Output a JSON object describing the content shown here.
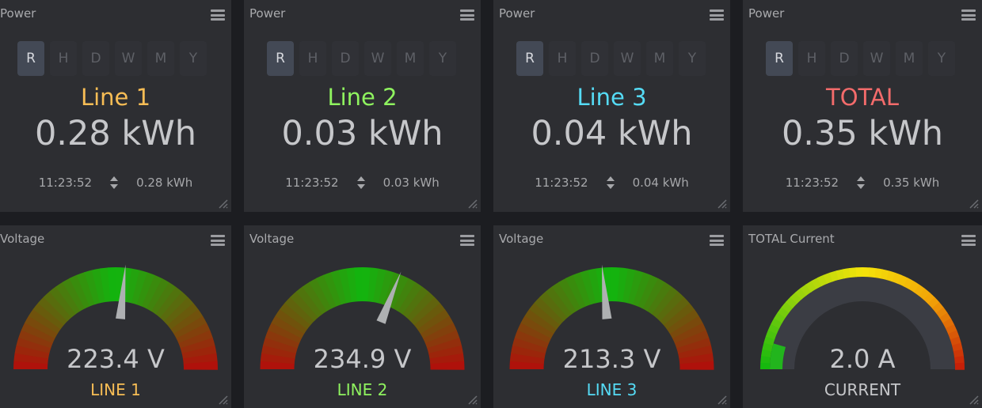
{
  "power_cards": [
    {
      "title": "Power",
      "ranges": [
        "R",
        "H",
        "D",
        "W",
        "M",
        "Y"
      ],
      "active_range": "R",
      "line_name": "Line 1",
      "line_color": "#f7bd55",
      "value": "0.28 kWh",
      "time": "11:23:52",
      "min_max": "0.28 kWh"
    },
    {
      "title": "Power",
      "ranges": [
        "R",
        "H",
        "D",
        "W",
        "M",
        "Y"
      ],
      "active_range": "R",
      "line_name": "Line 2",
      "line_color": "#8ff35f",
      "value": "0.03 kWh",
      "time": "11:23:52",
      "min_max": "0.03 kWh"
    },
    {
      "title": "Power",
      "ranges": [
        "R",
        "H",
        "D",
        "W",
        "M",
        "Y"
      ],
      "active_range": "R",
      "line_name": "Line 3",
      "line_color": "#55dbf5",
      "value": "0.04 kWh",
      "time": "11:23:52",
      "min_max": "0.04 kWh"
    },
    {
      "title": "Power",
      "ranges": [
        "R",
        "H",
        "D",
        "W",
        "M",
        "Y"
      ],
      "active_range": "R",
      "line_name": "TOTAL",
      "line_color": "#f36b6b",
      "value": "0.35 kWh",
      "time": "11:23:52",
      "min_max": "0.35 kWh"
    }
  ],
  "gauge_cards": [
    {
      "title": "Voltage",
      "value": "223.4 V",
      "label": "LINE 1",
      "label_color": "#f7bd55",
      "needle_fraction": 0.53,
      "style": "voltage"
    },
    {
      "title": "Voltage",
      "value": "234.9 V",
      "label": "LINE 2",
      "label_color": "#8ff35f",
      "needle_fraction": 0.62,
      "style": "voltage"
    },
    {
      "title": "Voltage",
      "value": "213.3 V",
      "label": "LINE 3",
      "label_color": "#55dbf5",
      "needle_fraction": 0.47,
      "style": "voltage"
    },
    {
      "title": "TOTAL Current",
      "value": "2.0 A",
      "label": "CURRENT",
      "label_color": "#c6c7ca",
      "fill_fraction": 0.09,
      "style": "current"
    }
  ],
  "colors": {
    "card_bg": "#2d2e32",
    "page_bg": "#1c1d21",
    "text": "#c6c7ca",
    "title": "#a9aaad",
    "gauge_red": "#b50b0b",
    "gauge_green": "#10b70e",
    "needle": "#aeb0b2",
    "current_track": "#3b3d44"
  }
}
